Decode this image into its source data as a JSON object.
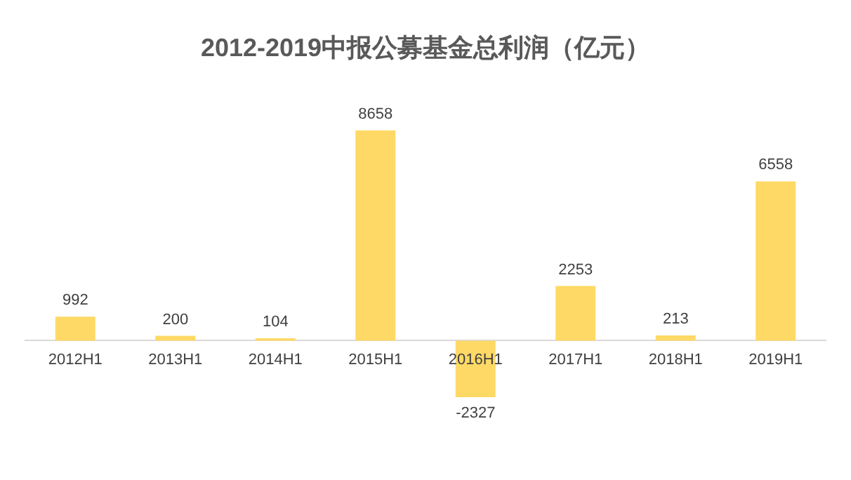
{
  "chart_data": {
    "type": "bar",
    "title": "2012-2019中报公募基金总利润（亿元）",
    "categories": [
      "2012H1",
      "2013H1",
      "2014H1",
      "2015H1",
      "2016H1",
      "2017H1",
      "2018H1",
      "2019H1"
    ],
    "values": [
      992,
      200,
      104,
      8658,
      -2327,
      2253,
      213,
      6558
    ],
    "color": "#ffd966",
    "data_labels": true,
    "grid": false,
    "legend": false
  }
}
